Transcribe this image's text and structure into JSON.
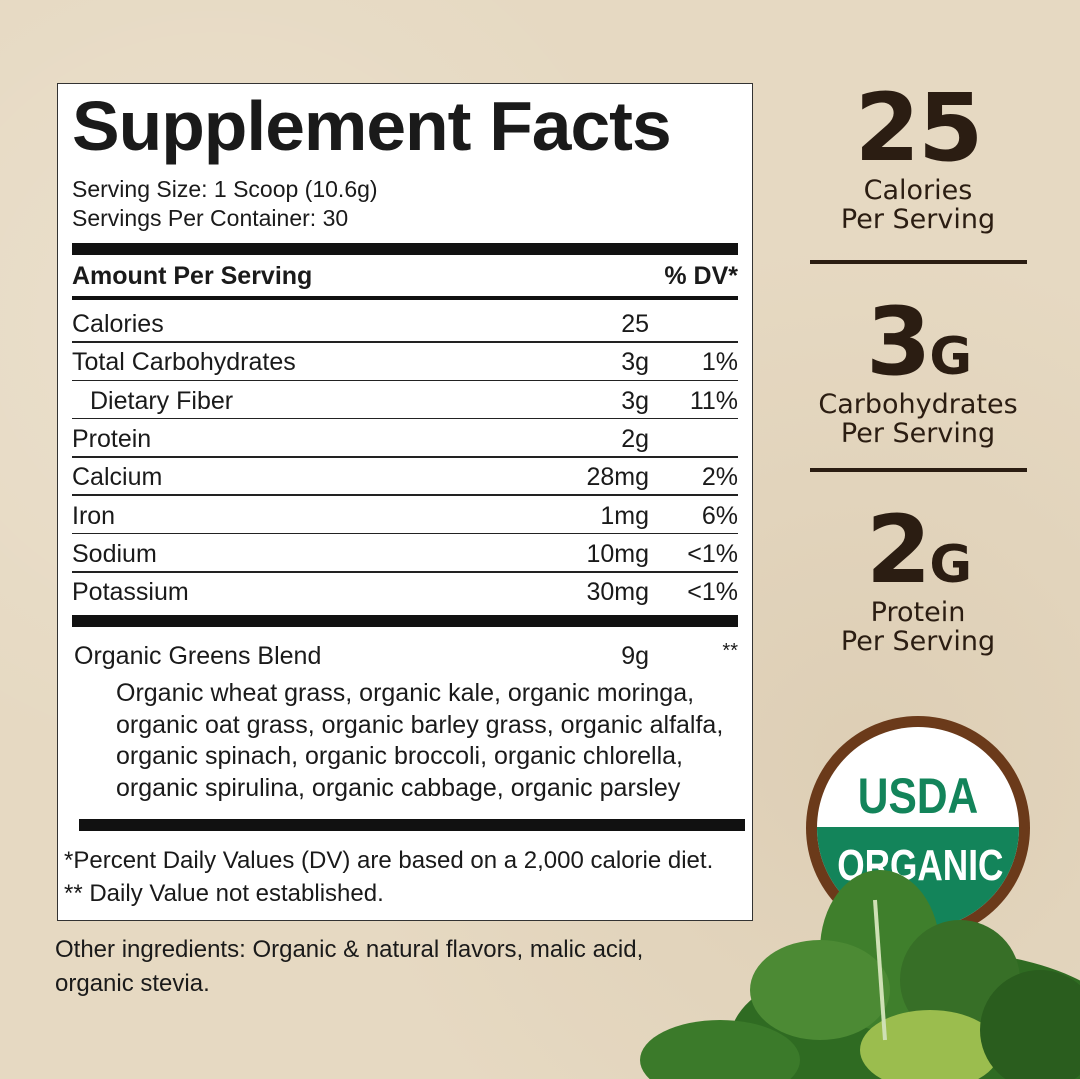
{
  "label": {
    "title": "Supplement Facts",
    "serving_size": "Serving Size: 1 Scoop (10.6g)",
    "servings_per_container": "Servings Per Container: 30",
    "header_amount": "Amount Per Serving",
    "header_dv": "% DV*",
    "rows": [
      {
        "name": "Calories",
        "amount": "25",
        "dv": ""
      },
      {
        "name": "Total Carbohydrates",
        "amount": "3g",
        "dv": "1%"
      },
      {
        "name": "Dietary Fiber",
        "amount": "3g",
        "dv": "11%"
      },
      {
        "name": "Protein",
        "amount": "2g",
        "dv": ""
      },
      {
        "name": "Calcium",
        "amount": "28mg",
        "dv": "2%"
      },
      {
        "name": "Iron",
        "amount": "1mg",
        "dv": "6%"
      },
      {
        "name": "Sodium",
        "amount": "10mg",
        "dv": "<1%"
      },
      {
        "name": "Potassium",
        "amount": "30mg",
        "dv": "<1%"
      }
    ],
    "blend": {
      "name": "Organic Greens Blend",
      "amount": "9g",
      "dv": "**"
    },
    "blend_ingredients": [
      "Organic wheat grass, organic kale, organic moringa,",
      "organic oat grass, organic barley grass, organic alfalfa,",
      "organic spinach, organic broccoli, organic chlorella,",
      "organic spirulina, organic cabbage, organic parsley"
    ],
    "footnote_1": "*Percent Daily Values (DV) are based on a 2,000 calorie diet.",
    "footnote_2": "** Daily Value not established."
  },
  "other_ingredients": [
    "Other ingredients: Organic & natural flavors, malic acid,",
    "organic stevia."
  ],
  "highlights": [
    {
      "value": "25",
      "unit": "",
      "line1": "Calories",
      "line2": "Per Serving"
    },
    {
      "value": "3",
      "unit": "G",
      "line1": "Carbohydrates",
      "line2": "Per Serving"
    },
    {
      "value": "2",
      "unit": "G",
      "line1": "Protein",
      "line2": "Per Serving"
    }
  ],
  "seal": {
    "top": "USDA",
    "bottom": "ORGANIC",
    "green": "#13845a",
    "brown": "#6b3a1a"
  },
  "colors": {
    "background": "#e6d9c2",
    "accent_text": "#2b1d12"
  }
}
